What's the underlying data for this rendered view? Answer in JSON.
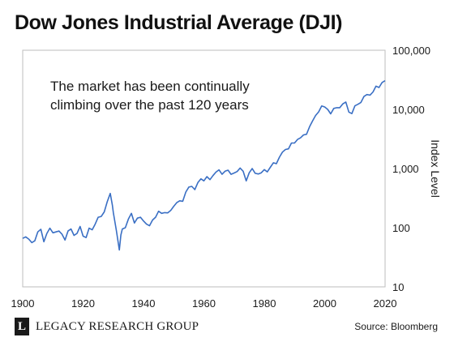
{
  "title": "Dow Jones Industrial Average (DJI)",
  "annotation_lines": [
    "The market has been continually",
    "climbing over the past 120 years"
  ],
  "brand": {
    "logo_letter": "L",
    "name": "LEGACY RESEARCH GROUP"
  },
  "source": "Source: Bloomberg",
  "colors": {
    "line": "#3a6fc4",
    "frame": "#bdbdbd",
    "text": "#1a1a1a"
  },
  "chart_data": {
    "type": "line",
    "title": "Dow Jones Industrial Average (DJI)",
    "xlabel": "",
    "ylabel": "Index Level",
    "yscale": "log",
    "xlim": [
      1900,
      2020
    ],
    "ylim": [
      10,
      100000
    ],
    "xticks": [
      1900,
      1920,
      1940,
      1960,
      1980,
      2000,
      2020
    ],
    "xtick_labels": [
      "1900",
      "1920",
      "1940",
      "1960",
      "1980",
      "2000",
      "2020"
    ],
    "yticks": [
      10,
      100,
      1000,
      10000,
      100000
    ],
    "ytick_labels": [
      "10",
      "100",
      "1,000",
      "10,000",
      "100,000"
    ],
    "grid": false,
    "y_axis_position": "right",
    "series": [
      {
        "name": "",
        "x": [
          1900,
          1901,
          1902,
          1903,
          1904,
          1905,
          1906,
          1907,
          1908,
          1909,
          1910,
          1911,
          1912,
          1913,
          1914,
          1915,
          1916,
          1917,
          1918,
          1919,
          1920,
          1921,
          1922,
          1923,
          1924,
          1925,
          1926,
          1927,
          1928,
          1929,
          1929.7,
          1930,
          1931,
          1932,
          1932.5,
          1933,
          1934,
          1935,
          1936,
          1937,
          1938,
          1939,
          1940,
          1941,
          1942,
          1943,
          1944,
          1945,
          1946,
          1947,
          1948,
          1949,
          1950,
          1951,
          1952,
          1953,
          1954,
          1955,
          1956,
          1957,
          1958,
          1959,
          1960,
          1961,
          1962,
          1963,
          1964,
          1965,
          1966,
          1967,
          1968,
          1969,
          1970,
          1971,
          1972,
          1973,
          1974,
          1975,
          1976,
          1977,
          1978,
          1979,
          1980,
          1981,
          1982,
          1983,
          1984,
          1985,
          1986,
          1987,
          1988,
          1989,
          1990,
          1991,
          1992,
          1993,
          1994,
          1995,
          1996,
          1997,
          1998,
          1999,
          2000,
          2001,
          2002,
          2003,
          2004,
          2005,
          2006,
          2007,
          2008,
          2009,
          2010,
          2011,
          2012,
          2013,
          2014,
          2015,
          2016,
          2017,
          2018,
          2019,
          2020
        ],
        "values": [
          66,
          70,
          64,
          56,
          60,
          85,
          94,
          58,
          80,
          98,
          82,
          85,
          88,
          78,
          62,
          88,
          95,
          74,
          80,
          105,
          72,
          68,
          98,
          92,
          115,
          150,
          155,
          185,
          275,
          380,
          240,
          180,
          90,
          42,
          75,
          95,
          100,
          140,
          175,
          120,
          145,
          150,
          130,
          115,
          108,
          135,
          150,
          190,
          175,
          180,
          178,
          195,
          230,
          265,
          285,
          280,
          400,
          485,
          500,
          440,
          580,
          670,
          620,
          730,
          650,
          760,
          870,
          950,
          800,
          900,
          940,
          800,
          840,
          890,
          1020,
          900,
          620,
          850,
          1000,
          830,
          810,
          850,
          960,
          880,
          1050,
          1250,
          1210,
          1550,
          1900,
          2100,
          2150,
          2700,
          2700,
          3100,
          3300,
          3700,
          3800,
          5100,
          6400,
          7900,
          9100,
          11400,
          11000,
          10000,
          8400,
          10400,
          10700,
          10700,
          12400,
          13300,
          9000,
          8500,
          11500,
          12200,
          13100,
          16500,
          17800,
          17400,
          19700,
          24700,
          23400,
          28500,
          30500
        ]
      }
    ]
  }
}
